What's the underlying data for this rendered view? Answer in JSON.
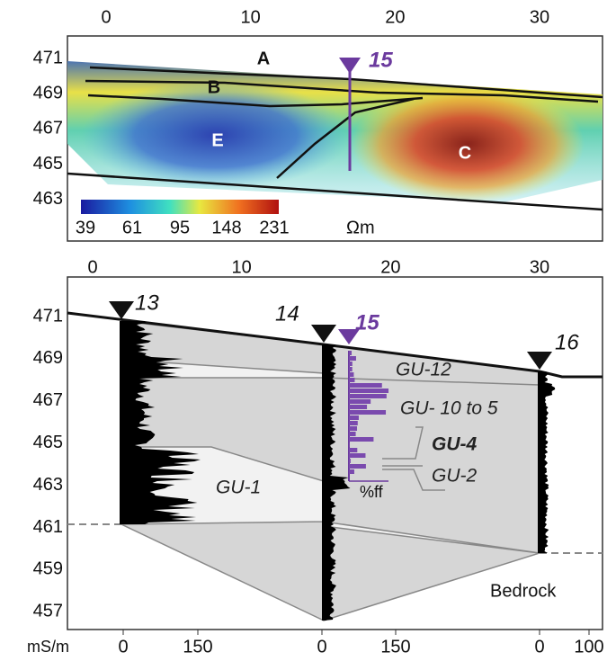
{
  "top_panel": {
    "x_ticks": [
      0,
      10,
      20,
      30
    ],
    "y_ticks": [
      471,
      469,
      467,
      465,
      463
    ],
    "units": [
      "A",
      "B",
      "E",
      "C"
    ],
    "well": 15,
    "colorbar": {
      "ticks": [
        39,
        61,
        95,
        148,
        231
      ],
      "unit": "Ωm"
    }
  },
  "bottom_panel": {
    "x_ticks": [
      0,
      10,
      20,
      30
    ],
    "y_ticks": [
      471,
      469,
      467,
      465,
      463,
      461,
      459,
      457
    ],
    "wells": [
      13,
      14,
      15,
      16
    ],
    "units": [
      "GU-12",
      "GU- 10 to 5",
      "GU-4",
      "GU-2",
      "GU-1"
    ],
    "ff_label": "%ff",
    "bedrock": "Bedrock",
    "log_axis": {
      "unit": "mS/m",
      "ticks": [
        0,
        150,
        0,
        150,
        0,
        100
      ]
    }
  }
}
